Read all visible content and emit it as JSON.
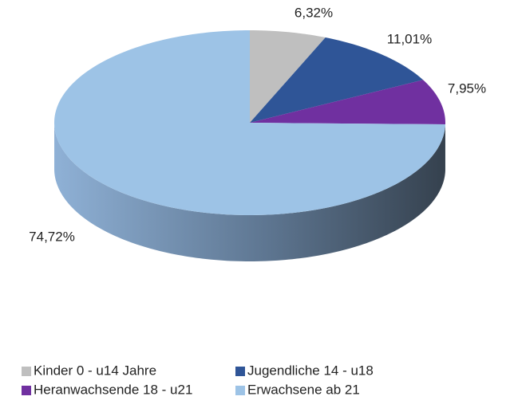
{
  "chart_data": {
    "type": "pie",
    "categories": [
      "Kinder 0 - u14 Jahre",
      "Jugendliche 14 - u18",
      "Heranwachsende 18 - u21",
      "Erwachsene ab 21"
    ],
    "values": [
      6.32,
      11.01,
      7.95,
      74.72
    ],
    "value_labels": [
      "6,32%",
      "11,01%",
      "7,95%",
      "74,72%"
    ],
    "colors": [
      "#bfbfbf",
      "#2f5597",
      "#7030a0",
      "#9dc3e6"
    ],
    "legend": "bottom"
  }
}
